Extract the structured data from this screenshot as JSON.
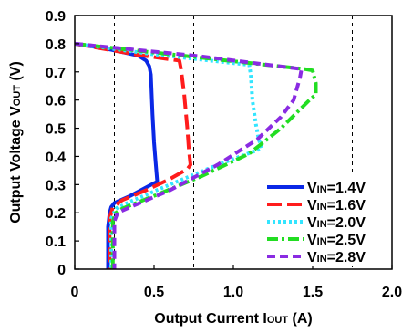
{
  "chart_data": {
    "type": "line",
    "xlabel_main": "Output Current I",
    "xlabel_sub": "OUT",
    "xlabel_unit": " (A)",
    "ylabel_main": "Output Voltage V",
    "ylabel_sub": "OUT",
    "ylabel_unit": " (V)",
    "xlim": [
      0,
      2.0
    ],
    "ylim": [
      0,
      0.9
    ],
    "x_ticks": [
      "0",
      "0.5",
      "1.0",
      "1.5",
      "2.0"
    ],
    "y_ticks": [
      "0",
      "0.1",
      "0.2",
      "0.3",
      "0.4",
      "0.5",
      "0.6",
      "0.7",
      "0.8",
      "0.9"
    ],
    "vertical_gridlines": [
      0.25,
      0.75,
      1.25,
      1.75
    ],
    "grid_style": "dashed vertical",
    "legend_placement": "lower-right",
    "series": [
      {
        "name_prefix": "V",
        "name_sub": "IN",
        "name_value": "=1.4V",
        "color": "#0a28e6",
        "dash": "solid",
        "x": [
          0.0,
          0.2,
          0.4,
          0.45,
          0.47,
          0.48,
          0.49,
          0.5,
          0.51,
          0.52,
          0.5,
          0.45,
          0.35,
          0.25,
          0.23,
          0.22,
          0.21,
          0.21,
          0.21
        ],
        "y": [
          0.8,
          0.782,
          0.758,
          0.74,
          0.72,
          0.69,
          0.55,
          0.45,
          0.38,
          0.31,
          0.305,
          0.29,
          0.26,
          0.235,
          0.22,
          0.2,
          0.15,
          0.05,
          0.0
        ]
      },
      {
        "name_prefix": "V",
        "name_sub": "IN",
        "name_value": "=1.6V",
        "color": "#ff1c1c",
        "dash": "long-dash",
        "x": [
          0.0,
          0.4,
          0.66,
          0.67,
          0.69,
          0.71,
          0.72,
          0.73,
          0.71,
          0.6,
          0.45,
          0.3,
          0.24,
          0.22,
          0.22,
          0.22
        ],
        "y": [
          0.8,
          0.76,
          0.74,
          0.71,
          0.62,
          0.5,
          0.42,
          0.37,
          0.355,
          0.32,
          0.28,
          0.245,
          0.22,
          0.18,
          0.05,
          0.0
        ]
      },
      {
        "name_prefix": "V",
        "name_sub": "IN",
        "name_value": "=2.0V",
        "color": "#33e5ff",
        "dash": "dotted",
        "x": [
          0.0,
          0.5,
          1.1,
          1.11,
          1.12,
          1.14,
          1.16,
          1.18,
          1.14,
          0.9,
          0.6,
          0.35,
          0.26,
          0.23,
          0.23,
          0.23
        ],
        "y": [
          0.8,
          0.762,
          0.725,
          0.69,
          0.6,
          0.52,
          0.46,
          0.43,
          0.42,
          0.37,
          0.3,
          0.24,
          0.215,
          0.18,
          0.05,
          0.0
        ]
      },
      {
        "name_prefix": "V",
        "name_sub": "IN",
        "name_value": "=2.5V",
        "color": "#22dd22",
        "dash": "dash-dot",
        "x": [
          0.0,
          0.8,
          1.45,
          1.5,
          1.52,
          1.52,
          1.48,
          1.3,
          1.1,
          0.8,
          0.5,
          0.3,
          0.26,
          0.24,
          0.24,
          0.24
        ],
        "y": [
          0.8,
          0.75,
          0.71,
          0.705,
          0.66,
          0.62,
          0.6,
          0.5,
          0.41,
          0.33,
          0.26,
          0.215,
          0.2,
          0.17,
          0.05,
          0.0
        ]
      },
      {
        "name_prefix": "V",
        "name_sub": "IN",
        "name_value": "=2.8V",
        "color": "#8a2be2",
        "dash": "dashed",
        "x": [
          0.0,
          0.8,
          1.43,
          1.42,
          1.38,
          1.3,
          1.15,
          0.9,
          0.6,
          0.35,
          0.27,
          0.25,
          0.25,
          0.25
        ],
        "y": [
          0.8,
          0.755,
          0.71,
          0.68,
          0.6,
          0.54,
          0.46,
          0.37,
          0.28,
          0.22,
          0.2,
          0.17,
          0.05,
          0.0
        ]
      }
    ]
  }
}
